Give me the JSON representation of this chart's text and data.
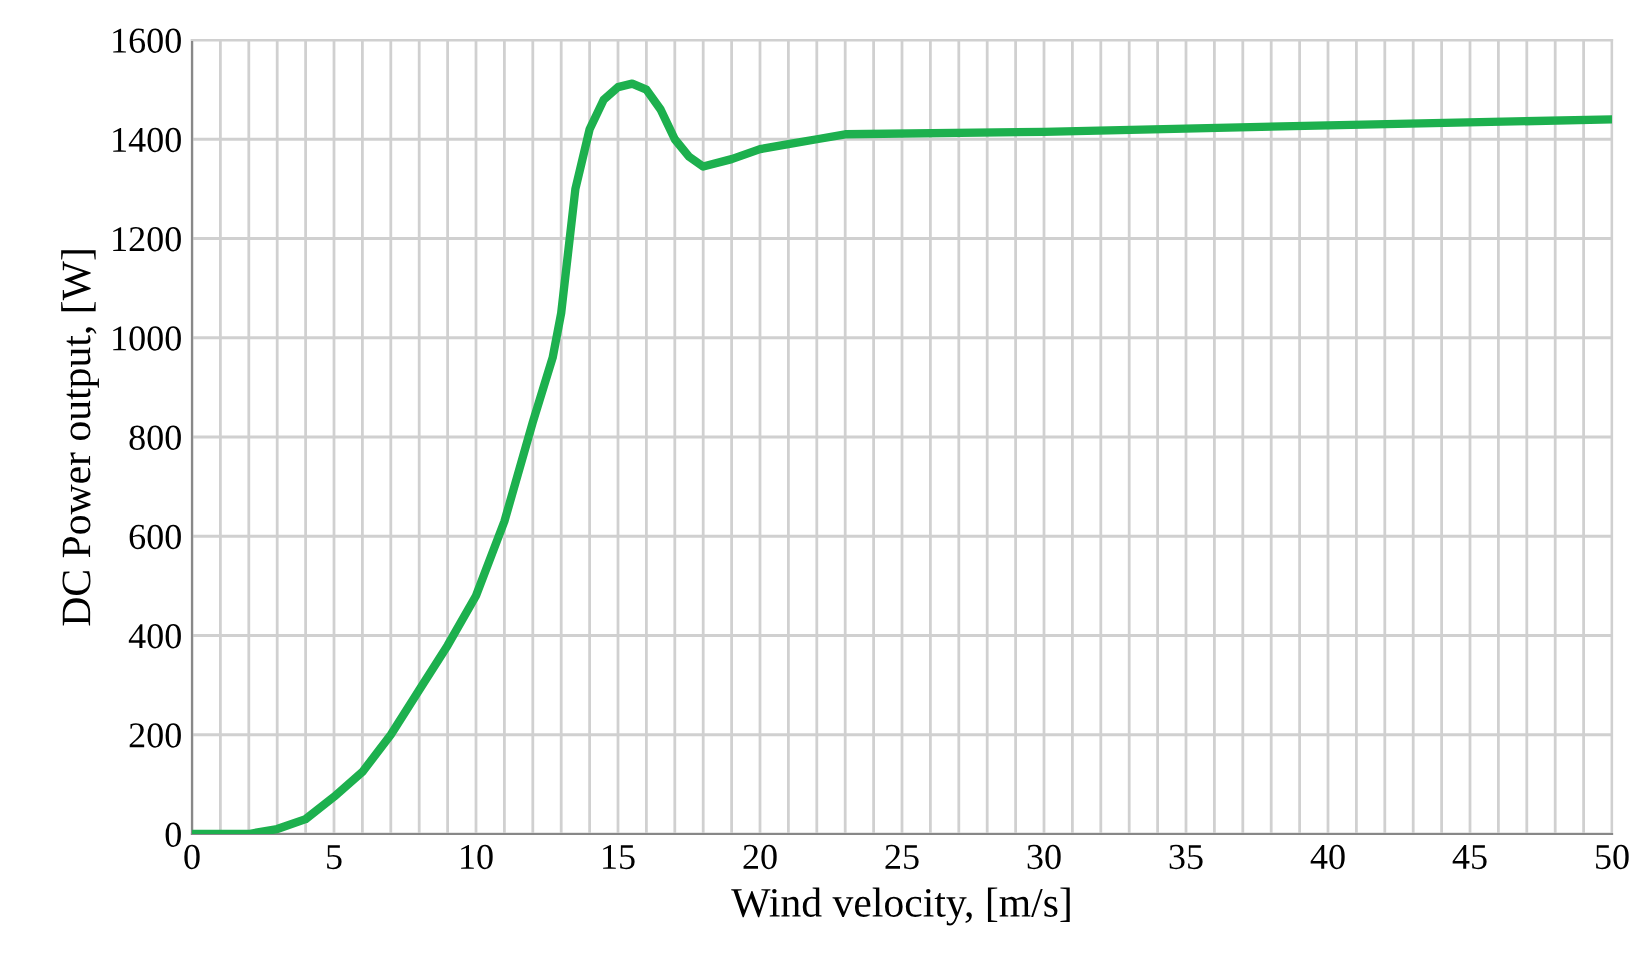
{
  "chart_data": {
    "type": "line",
    "xlabel": "Wind velocity, [m/s]",
    "ylabel": "DC Power output, [W]",
    "series": [
      {
        "color": "#1db04e",
        "x": [
          0,
          1,
          2,
          3,
          4,
          5,
          6,
          7,
          8,
          9,
          10,
          11,
          12,
          12.7,
          13,
          13.5,
          14,
          14.5,
          15,
          15.5,
          16,
          16.5,
          17,
          17.5,
          18,
          19,
          20,
          21,
          22,
          23,
          30,
          40,
          50
        ],
        "values": [
          0,
          0,
          0,
          10,
          30,
          75,
          125,
          200,
          290,
          380,
          480,
          630,
          830,
          960,
          1050,
          1300,
          1420,
          1480,
          1505,
          1512,
          1500,
          1460,
          1400,
          1365,
          1345,
          1360,
          1380,
          1390,
          1400,
          1410,
          1415,
          1428,
          1440
        ]
      }
    ],
    "xlim": [
      0,
      50
    ],
    "ylim": [
      0,
      1600
    ],
    "xticks": [
      0,
      5,
      10,
      15,
      20,
      25,
      30,
      35,
      40,
      45,
      50
    ],
    "yticks": [
      0,
      200,
      400,
      600,
      800,
      1000,
      1200,
      1400,
      1600
    ],
    "grid": true,
    "marker": "none",
    "line_style": "solid"
  }
}
